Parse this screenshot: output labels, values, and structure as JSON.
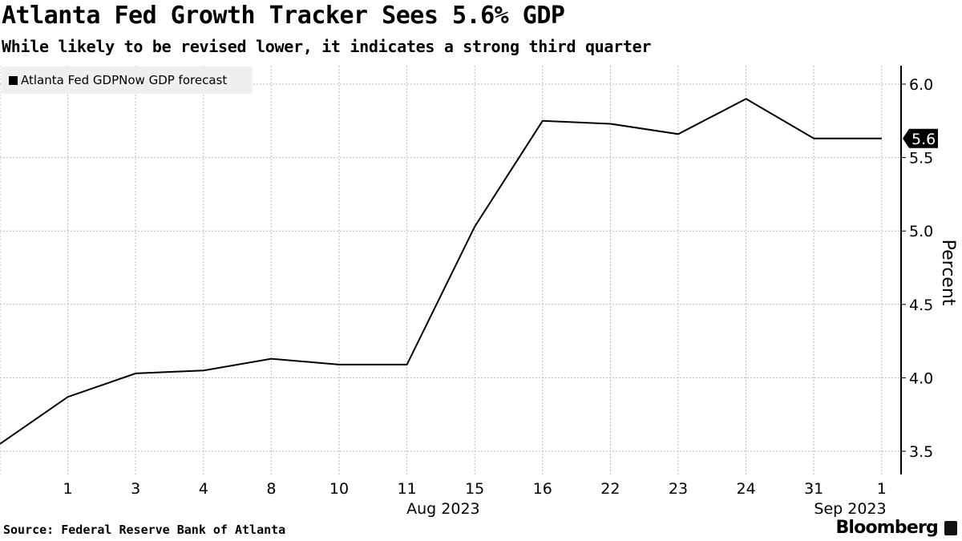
{
  "header": {
    "title": "Atlanta Fed Growth Tracker Sees 5.6% GDP",
    "subtitle": "While likely to be revised lower, it indicates a strong third quarter"
  },
  "footer": {
    "source": "Source: Federal Reserve Bank of Atlanta",
    "brand": "Bloomberg"
  },
  "chart_data": {
    "type": "line",
    "title": "Atlanta Fed Growth Tracker Sees 5.6% GDP",
    "subtitle": "While likely to be revised lower, it indicates a strong third quarter",
    "xlabel": "",
    "ylabel": "Percent",
    "categories": [
      "",
      "1",
      "3",
      "4",
      "8",
      "10",
      "11",
      "15",
      "16",
      "22",
      "23",
      "24",
      "31",
      "1"
    ],
    "month_labels": [
      {
        "label": "Aug 2023",
        "at_index": 6.5
      },
      {
        "label": "Sep 2023",
        "at_index": 12.5
      }
    ],
    "series": [
      {
        "name": "Atlanta Fed GDPNow GDP forecast",
        "color": "#000000",
        "values": [
          3.55,
          3.87,
          4.03,
          4.05,
          4.13,
          4.09,
          4.09,
          5.03,
          5.75,
          5.73,
          5.66,
          5.9,
          5.63,
          5.63
        ]
      }
    ],
    "last_value_label": "5.6",
    "ylim": [
      3.3,
      6.13
    ],
    "yticks": [
      3.5,
      4.0,
      4.5,
      5.0,
      5.5,
      6.0
    ],
    "ytick_labels": [
      "3.5",
      "4.0",
      "4.5",
      "5.0",
      "5.5",
      "6.0"
    ],
    "grid": true,
    "legend": "top-left",
    "y_axis_side": "right"
  }
}
